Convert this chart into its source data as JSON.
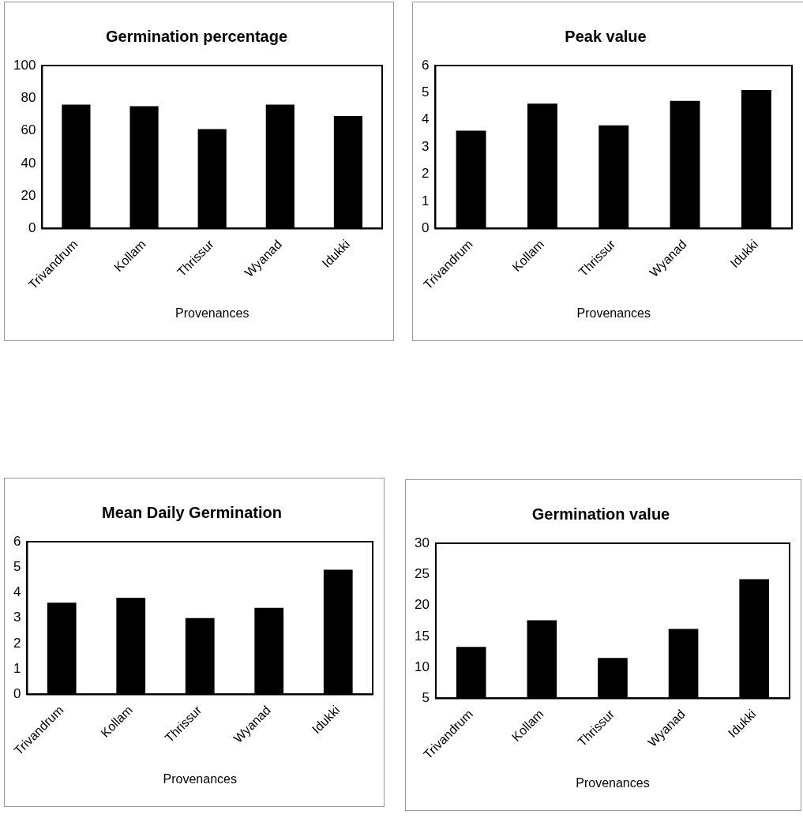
{
  "chart_data": [
    {
      "type": "bar",
      "title": "Germination percentage",
      "xlabel": "Provenances",
      "categories": [
        "Trivandrum",
        "Kollam",
        "Thrissur",
        "Wyanad",
        "Idukki"
      ],
      "values": [
        76,
        75,
        61,
        76,
        69
      ],
      "color": "#000000",
      "ylim": [
        0,
        100
      ],
      "yticks": [
        0,
        20,
        40,
        60,
        80,
        100
      ],
      "grid": false,
      "legend": false
    },
    {
      "type": "bar",
      "title": "Peak value",
      "xlabel": "Provenances",
      "categories": [
        "Trivandrum",
        "Kollam",
        "Thrissur",
        "Wyanad",
        "Idukki"
      ],
      "values": [
        3.6,
        4.6,
        3.8,
        4.7,
        5.1
      ],
      "color": "#000000",
      "ylim": [
        0,
        6
      ],
      "yticks": [
        0,
        1,
        2,
        3,
        4,
        5,
        6
      ],
      "grid": false,
      "legend": false
    },
    {
      "type": "bar",
      "title": "Mean Daily Germination",
      "xlabel": "Provenances",
      "categories": [
        "Trivandrum",
        "Kollam",
        "Thrissur",
        "Wyanad",
        "Idukki"
      ],
      "values": [
        3.6,
        3.8,
        3.0,
        3.4,
        4.9
      ],
      "color": "#000000",
      "ylim": [
        0,
        6
      ],
      "yticks": [
        0,
        1,
        2,
        3,
        4,
        5,
        6
      ],
      "grid": false,
      "legend": false
    },
    {
      "type": "bar",
      "title": "Germination value",
      "xlabel": "Provenances",
      "categories": [
        "Trivandrum",
        "Kollam",
        "Thrissur",
        "Wyanad",
        "Idukki"
      ],
      "values": [
        13.3,
        17.6,
        11.5,
        16.2,
        24.2
      ],
      "color": "#000000",
      "ylim": [
        5,
        30
      ],
      "yticks": [
        5,
        10,
        15,
        20,
        25,
        30
      ],
      "grid": false,
      "legend": false
    }
  ]
}
